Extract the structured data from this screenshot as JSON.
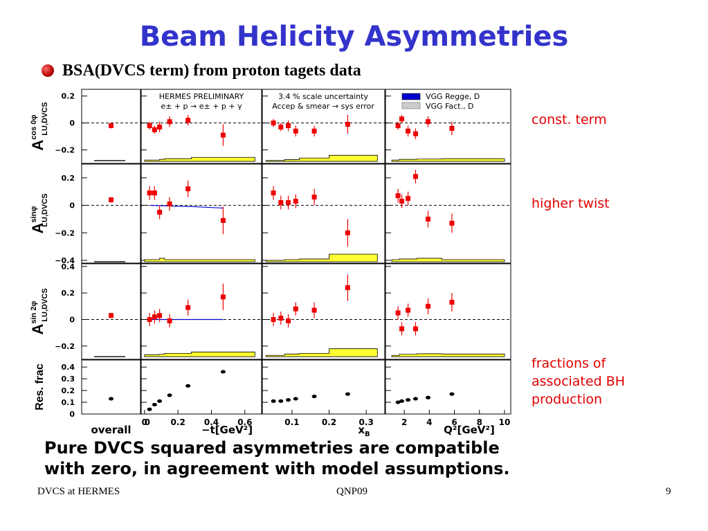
{
  "title": "Beam Helicity Asymmetries",
  "subtitle": "BSA(DVCS term) from proton tagets data",
  "annotations": {
    "const": "const. term",
    "ht": "higher twist",
    "frac1": "fractions of",
    "frac2": "associated BH",
    "frac3": "production"
  },
  "conclusion": {
    "line1": "Pure DVCS squared asymmetries are compatible",
    "line2": "with zero, in agreement with model assumptions."
  },
  "footer": {
    "left": "DVCS at HERMES",
    "center": "QNP09",
    "right": "9"
  },
  "legends": {
    "preliminary": "HERMES PRELIMINARY",
    "reaction": "e± + p → e± + p + γ",
    "scale1": "3.4 % scale uncertainty",
    "scale2": "Accep & smear → sys error",
    "model1": "VGG Regge, D",
    "model2": "VGG Fact., D"
  },
  "colors": {
    "data": "#ee0000",
    "sysband": "#ffff33",
    "model": "#0000cc",
    "frac": "#000000"
  },
  "chart_data": {
    "type": "scatter",
    "columns": [
      {
        "key": "overall",
        "xlabel": "overall",
        "xlim": [
          0,
          1
        ],
        "xticks": []
      },
      {
        "key": "t",
        "xlabel": "−t[GeV²]",
        "xlim": [
          -0.02,
          0.7
        ],
        "xticks": [
          "0",
          "0.2",
          "0.4",
          "0.6"
        ]
      },
      {
        "key": "xb",
        "xlabel": "x_B",
        "xlim": [
          0.02,
          0.35
        ],
        "xticks": [
          "0.1",
          "0.2",
          "0.3"
        ]
      },
      {
        "key": "q2",
        "xlabel": "Q²[GeV²]",
        "xlim": [
          0.5,
          10.5
        ],
        "xticks": [
          "2",
          "4",
          "6",
          "8",
          "10"
        ]
      }
    ],
    "rows": [
      {
        "key": "cos0",
        "ylabel": "A_LU,DVCS^cos 0φ",
        "ylim": [
          -0.3,
          0.25
        ],
        "yticks": [
          "−0.2",
          "0",
          "0.2"
        ],
        "series": {
          "overall": {
            "x": [
              0.5
            ],
            "y": [
              -0.02
            ],
            "err": [
              0.02
            ]
          },
          "t": {
            "x": [
              0.03,
              0.06,
              0.09,
              0.15,
              0.26,
              0.47
            ],
            "y": [
              -0.02,
              -0.05,
              -0.03,
              0.01,
              0.02,
              -0.09
            ],
            "err": [
              0.03,
              0.03,
              0.04,
              0.04,
              0.04,
              0.08
            ]
          },
          "xb": {
            "x": [
              0.05,
              0.07,
              0.09,
              0.11,
              0.16,
              0.25
            ],
            "y": [
              0.0,
              -0.03,
              -0.02,
              -0.06,
              -0.06,
              -0.01
            ],
            "err": [
              0.03,
              0.03,
              0.04,
              0.04,
              0.04,
              0.07
            ]
          },
          "q2": {
            "x": [
              1.5,
              1.8,
              2.3,
              2.9,
              3.9,
              5.8
            ],
            "y": [
              -0.02,
              0.03,
              -0.06,
              -0.08,
              0.01,
              -0.04
            ],
            "err": [
              0.03,
              0.03,
              0.04,
              0.04,
              0.04,
              0.05
            ]
          }
        },
        "sysband": {
          "overall": {
            "y": [
              -0.28
            ],
            "h": [
              0.0
            ]
          },
          "t": {
            "x": [
              0,
              0.09,
              0.12,
              0.28,
              0.66
            ],
            "top": [
              -0.275,
              -0.27,
              -0.265,
              -0.255
            ],
            "bottom": -0.285
          },
          "xb": {
            "x": [
              0.03,
              0.08,
              0.12,
              0.2,
              0.33
            ],
            "top": [
              -0.278,
              -0.272,
              -0.26,
              -0.24
            ],
            "bottom": -0.285
          },
          "q2": {
            "x": [
              1,
              1.6,
              3,
              5,
              10
            ],
            "top": [
              -0.275,
              -0.27,
              -0.268,
              -0.265
            ],
            "bottom": -0.285
          }
        }
      },
      {
        "key": "sin",
        "ylabel": "A_LU,DVCS^sinφ",
        "ylim": [
          -0.42,
          0.3
        ],
        "yticks": [
          "−0.4",
          "−0.2",
          "0",
          "0.2"
        ],
        "series": {
          "overall": {
            "x": [
              0.5
            ],
            "y": [
              0.04
            ],
            "err": [
              0.02
            ]
          },
          "t": {
            "x": [
              0.03,
              0.06,
              0.09,
              0.15,
              0.26,
              0.47
            ],
            "y": [
              0.09,
              0.09,
              -0.05,
              0.01,
              0.12,
              -0.11
            ],
            "err": [
              0.05,
              0.05,
              0.05,
              0.05,
              0.06,
              0.1
            ]
          },
          "xb": {
            "x": [
              0.05,
              0.07,
              0.09,
              0.11,
              0.16,
              0.25
            ],
            "y": [
              0.09,
              0.02,
              0.02,
              0.03,
              0.06,
              -0.2
            ],
            "err": [
              0.05,
              0.05,
              0.05,
              0.05,
              0.06,
              0.1
            ]
          },
          "q2": {
            "x": [
              1.5,
              1.8,
              2.3,
              2.9,
              3.9,
              5.8
            ],
            "y": [
              0.07,
              0.03,
              0.05,
              0.21,
              -0.1,
              -0.13
            ],
            "err": [
              0.05,
              0.05,
              0.05,
              0.05,
              0.06,
              0.07
            ]
          }
        },
        "sysband": {
          "overall": {
            "y": [
              -0.41
            ],
            "h": [
              0.0
            ]
          },
          "t": {
            "x": [
              0,
              0.09,
              0.12,
              0.28,
              0.66
            ],
            "top": [
              -0.395,
              -0.385,
              -0.395,
              -0.395
            ],
            "bottom": -0.41
          },
          "xb": {
            "x": [
              0.03,
              0.08,
              0.12,
              0.2,
              0.33
            ],
            "top": [
              -0.4,
              -0.395,
              -0.39,
              -0.355
            ],
            "bottom": -0.41
          },
          "q2": {
            "x": [
              1,
              1.6,
              3,
              5,
              10
            ],
            "top": [
              -0.395,
              -0.39,
              -0.385,
              -0.395
            ],
            "bottom": -0.41
          }
        },
        "model": {
          "t": {
            "x": [
              0.03,
              0.15,
              0.3,
              0.47
            ],
            "y": [
              0.0,
              -0.005,
              -0.01,
              -0.02
            ]
          }
        }
      },
      {
        "key": "sin2",
        "ylabel": "A_LU,DVCS^sin 2φ",
        "ylim": [
          -0.3,
          0.42
        ],
        "yticks": [
          "−0.2",
          "0",
          "0.2",
          "0.4"
        ],
        "series": {
          "overall": {
            "x": [
              0.5
            ],
            "y": [
              0.03
            ],
            "err": [
              0.02
            ]
          },
          "t": {
            "x": [
              0.03,
              0.06,
              0.09,
              0.15,
              0.26,
              0.47
            ],
            "y": [
              0.0,
              0.02,
              0.03,
              -0.01,
              0.09,
              0.17
            ],
            "err": [
              0.05,
              0.05,
              0.05,
              0.05,
              0.06,
              0.1
            ]
          },
          "xb": {
            "x": [
              0.05,
              0.07,
              0.09,
              0.11,
              0.16,
              0.25
            ],
            "y": [
              0.0,
              0.01,
              -0.01,
              0.08,
              0.07,
              0.24
            ],
            "err": [
              0.05,
              0.05,
              0.05,
              0.05,
              0.06,
              0.1
            ]
          },
          "q2": {
            "x": [
              1.5,
              1.8,
              2.3,
              2.9,
              3.9,
              5.8
            ],
            "y": [
              0.05,
              -0.07,
              0.07,
              -0.07,
              0.1,
              0.13
            ],
            "err": [
              0.05,
              0.05,
              0.05,
              0.05,
              0.06,
              0.07
            ]
          }
        },
        "sysband": {
          "overall": {
            "y": [
              -0.28
            ],
            "h": [
              0.0
            ]
          },
          "t": {
            "x": [
              0,
              0.09,
              0.12,
              0.28,
              0.66
            ],
            "top": [
              -0.265,
              -0.262,
              -0.255,
              -0.245
            ],
            "bottom": -0.28
          },
          "xb": {
            "x": [
              0.03,
              0.08,
              0.12,
              0.2,
              0.33
            ],
            "top": [
              -0.27,
              -0.26,
              -0.255,
              -0.22
            ],
            "bottom": -0.28
          },
          "q2": {
            "x": [
              1,
              1.6,
              3,
              5,
              10
            ],
            "top": [
              -0.27,
              -0.262,
              -0.258,
              -0.26
            ],
            "bottom": -0.28
          }
        },
        "model": {
          "t": {
            "x": [
              0.03,
              0.15,
              0.3,
              0.47
            ],
            "y": [
              0.0,
              0.0,
              0.0,
              0.0
            ]
          }
        }
      },
      {
        "key": "frac",
        "ylabel": "Res. frac",
        "ylim": [
          0,
          0.46
        ],
        "yticks": [
          "0",
          "0.1",
          "0.2",
          "0.3",
          "0.4"
        ],
        "series": {
          "overall": {
            "x": [
              0.5
            ],
            "y": [
              0.13
            ],
            "err": [
              0
            ]
          },
          "t": {
            "x": [
              0.03,
              0.06,
              0.09,
              0.15,
              0.26,
              0.47
            ],
            "y": [
              0.04,
              0.08,
              0.11,
              0.16,
              0.24,
              0.36
            ],
            "err": [
              0,
              0,
              0,
              0,
              0,
              0
            ]
          },
          "xb": {
            "x": [
              0.05,
              0.07,
              0.09,
              0.11,
              0.16,
              0.25
            ],
            "y": [
              0.11,
              0.11,
              0.12,
              0.13,
              0.15,
              0.17
            ],
            "err": [
              0,
              0,
              0,
              0,
              0,
              0
            ]
          },
          "q2": {
            "x": [
              1.5,
              1.8,
              2.3,
              2.9,
              3.9,
              5.8
            ],
            "y": [
              0.1,
              0.11,
              0.12,
              0.13,
              0.14,
              0.17
            ],
            "err": [
              0,
              0,
              0,
              0,
              0,
              0
            ]
          }
        }
      }
    ]
  }
}
